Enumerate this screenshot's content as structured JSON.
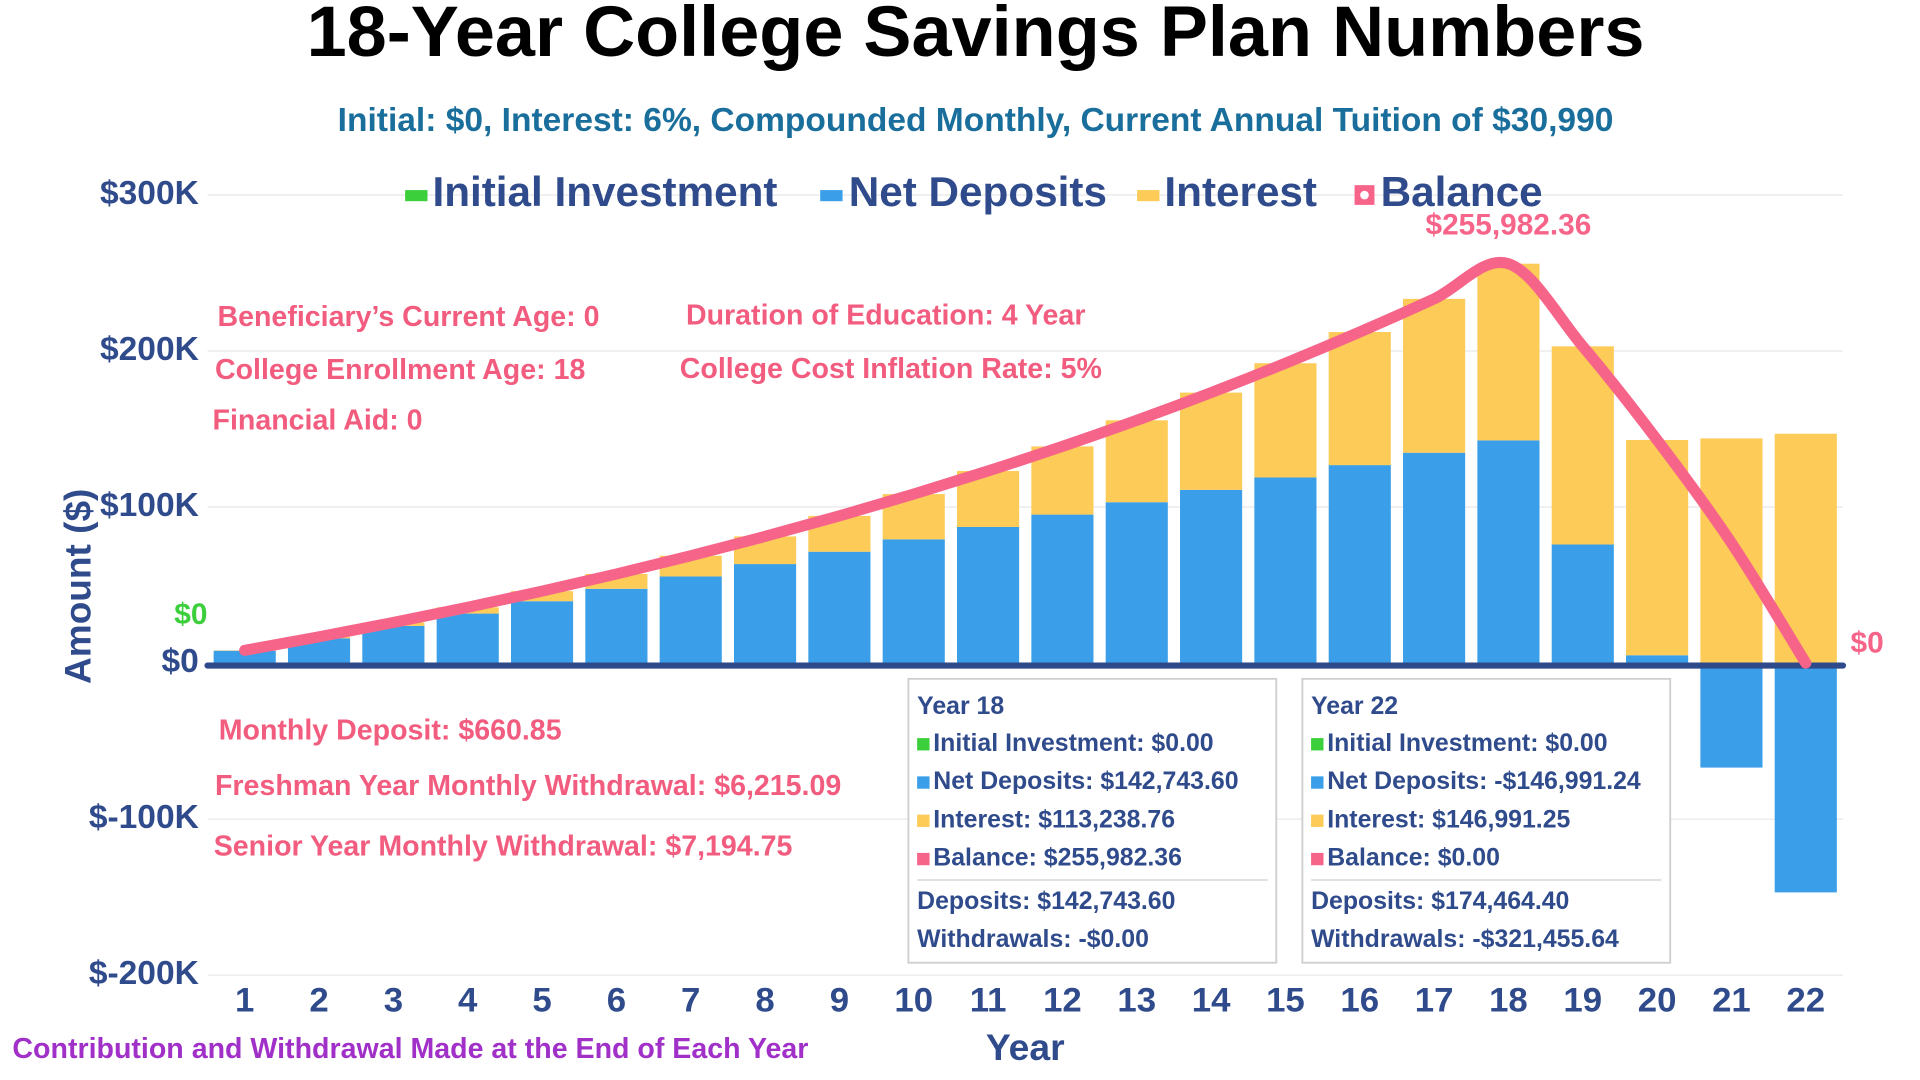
{
  "chart_data": {
    "type": "stacked-bar-line",
    "title": "18-Year College Savings Plan Numbers",
    "subtitle": "Initial: $0, Interest: 6%, Compounded Monthly, Current Annual Tuition of $30,990",
    "x_label": "Year",
    "y_label": "Amount ($)",
    "categories": [
      1,
      2,
      3,
      4,
      5,
      6,
      7,
      8,
      9,
      10,
      11,
      12,
      13,
      14,
      15,
      16,
      17,
      18,
      19,
      20,
      21,
      22
    ],
    "ylim": [
      -200000,
      300000
    ],
    "yticks": [
      {
        "value": -200000,
        "label": "$-200K"
      },
      {
        "value": -100000,
        "label": "$-100K"
      },
      {
        "value": 0,
        "label": "$0"
      },
      {
        "value": 100000,
        "label": "$100K"
      },
      {
        "value": 200000,
        "label": "$200K"
      },
      {
        "value": 300000,
        "label": "$300K"
      }
    ],
    "grid": true,
    "series": [
      {
        "name": "Initial Investment",
        "type": "bar",
        "color": "#3ccf3c",
        "values": [
          0,
          0,
          0,
          0,
          0,
          0,
          0,
          0,
          0,
          0,
          0,
          0,
          0,
          0,
          0,
          0,
          0,
          0,
          0,
          0,
          0,
          0
        ],
        "value_labels": [
          "$0",
          null,
          null,
          null,
          null,
          null,
          null,
          null,
          null,
          null,
          null,
          null,
          null,
          null,
          null,
          null,
          null,
          null,
          null,
          null,
          null,
          null
        ]
      },
      {
        "name": "Net Deposits",
        "type": "bar",
        "color": "#3a9fe8",
        "values": [
          7930.2,
          15860.4,
          23790.6,
          31720.8,
          39651,
          47581.2,
          55511.4,
          63441.6,
          71371.8,
          79302,
          87232.2,
          95162.4,
          103092.6,
          111022.8,
          118953,
          126883.2,
          134813.4,
          142743.6,
          76000,
          5000,
          -67000,
          -146991.24
        ]
      },
      {
        "name": "Interest",
        "type": "bar",
        "color": "#fdcb58",
        "values": [
          221.8,
          946.7,
          2204.1,
          4027.6,
          6452.8,
          9518.3,
          13263.8,
          17727.5,
          22955.7,
          28994.8,
          35896.2,
          43711.8,
          52499.4,
          62318,
          73230.3,
          85305.2,
          98614.6,
          113238.76,
          127000,
          138000,
          144000,
          146991.25
        ]
      },
      {
        "name": "Balance",
        "type": "line",
        "color": "#f7648a",
        "values": [
          8152,
          16807.1,
          25994.7,
          35748.4,
          46103.8,
          57099.5,
          68775.2,
          81169.1,
          94327.5,
          108296.8,
          123128.4,
          138874.2,
          155592,
          173340.8,
          192183.3,
          212188.4,
          233428,
          255982.36,
          203000,
          143000,
          77000,
          0
        ],
        "value_labels": [
          null,
          null,
          null,
          null,
          null,
          null,
          null,
          null,
          null,
          null,
          null,
          null,
          null,
          null,
          null,
          null,
          null,
          "$255,982.36",
          null,
          null,
          null,
          "$0"
        ]
      }
    ],
    "annotations": [
      "Beneficiary’s Current Age: 0",
      "College Enrollment Age: 18",
      "Financial Aid: 0",
      "Duration of Education: 4 Year",
      "College Cost Inflation Rate: 5%",
      "Monthly Deposit: $660.85",
      "Freshman Year Monthly Withdrawal: $6,215.09",
      "Senior Year Monthly Withdrawal: $7,194.75"
    ],
    "footnote": "Contribution and Withdrawal Made at the End of Each Year",
    "tooltips": [
      {
        "title": "Year 18",
        "items": [
          "Initial Investment: $0.00",
          "Net Deposits: $142,743.60",
          "Interest: $113,238.76",
          "Balance: $255,982.36"
        ],
        "totals": [
          "Deposits: $142,743.60",
          "Withdrawals: -$0.00"
        ]
      },
      {
        "title": "Year 22",
        "items": [
          "Initial Investment: $0.00",
          "Net Deposits: -$146,991.24",
          "Interest: $146,991.25",
          "Balance: $0.00"
        ],
        "totals": [
          "Deposits: $174,464.40",
          "Withdrawals: -$321,455.64"
        ]
      }
    ]
  }
}
